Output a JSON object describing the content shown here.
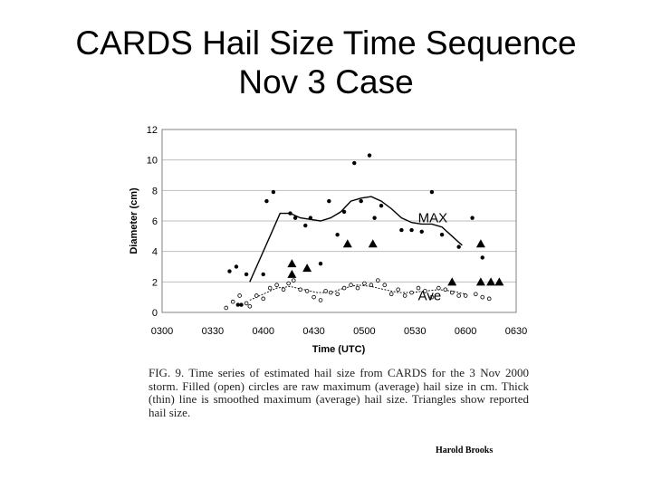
{
  "slide": {
    "title_line1": "CARDS Hail Size Time Sequence",
    "title_line2": "Nov 3 Case"
  },
  "chart_data": {
    "type": "scatter",
    "xlabel": "Time (UTC)",
    "ylabel": "Diameter (cm)",
    "x_ticks": [
      "0300",
      "0330",
      "0400",
      "0430",
      "0500",
      "0530",
      "0600",
      "0630"
    ],
    "y_ticks": [
      "0",
      "2",
      "4",
      "6",
      "8",
      "10",
      "12"
    ],
    "xlim": [
      0,
      210
    ],
    "ylim": [
      0,
      12
    ],
    "grid": "horizontal",
    "annotations": [
      {
        "text": "MAX",
        "x": 155,
        "y": 6.2
      },
      {
        "text": "Ave",
        "x": 155,
        "y": 1.1
      }
    ],
    "series": [
      {
        "name": "raw maximum hail size",
        "marker": "filled-circle",
        "points": [
          [
            40,
            2.7
          ],
          [
            44,
            3.0
          ],
          [
            45,
            0.5
          ],
          [
            47,
            0.5
          ],
          [
            50,
            2.5
          ],
          [
            60,
            2.5
          ],
          [
            62,
            7.3
          ],
          [
            66,
            7.9
          ],
          [
            76,
            6.5
          ],
          [
            79,
            6.2
          ],
          [
            85,
            5.7
          ],
          [
            88,
            6.2
          ],
          [
            94,
            3.2
          ],
          [
            99,
            7.3
          ],
          [
            104,
            5.1
          ],
          [
            108,
            6.6
          ],
          [
            114,
            9.8
          ],
          [
            118,
            7.3
          ],
          [
            123,
            10.3
          ],
          [
            126,
            6.2
          ],
          [
            130,
            7.0
          ],
          [
            142,
            5.4
          ],
          [
            148,
            5.4
          ],
          [
            154,
            5.3
          ],
          [
            160,
            7.9
          ],
          [
            166,
            5.1
          ],
          [
            176,
            4.3
          ],
          [
            184,
            6.2
          ],
          [
            190,
            3.6
          ]
        ]
      },
      {
        "name": "raw average hail size",
        "marker": "open-circle",
        "points": [
          [
            38,
            0.3
          ],
          [
            42,
            0.7
          ],
          [
            46,
            1.1
          ],
          [
            50,
            0.6
          ],
          [
            52,
            0.4
          ],
          [
            56,
            1.1
          ],
          [
            60,
            0.9
          ],
          [
            64,
            1.6
          ],
          [
            68,
            1.8
          ],
          [
            72,
            1.5
          ],
          [
            75,
            1.9
          ],
          [
            78,
            2.1
          ],
          [
            82,
            1.5
          ],
          [
            86,
            1.4
          ],
          [
            90,
            1.0
          ],
          [
            94,
            0.8
          ],
          [
            97,
            1.4
          ],
          [
            100,
            1.3
          ],
          [
            104,
            1.2
          ],
          [
            108,
            1.6
          ],
          [
            112,
            1.8
          ],
          [
            116,
            1.6
          ],
          [
            120,
            1.9
          ],
          [
            124,
            1.8
          ],
          [
            128,
            2.1
          ],
          [
            132,
            1.8
          ],
          [
            136,
            1.2
          ],
          [
            140,
            1.5
          ],
          [
            144,
            1.1
          ],
          [
            148,
            1.3
          ],
          [
            152,
            1.6
          ],
          [
            156,
            1.4
          ],
          [
            160,
            1.0
          ],
          [
            164,
            1.6
          ],
          [
            168,
            1.5
          ],
          [
            172,
            1.3
          ],
          [
            176,
            1.1
          ],
          [
            180,
            1.1
          ],
          [
            186,
            1.2
          ],
          [
            190,
            1.0
          ],
          [
            194,
            0.9
          ]
        ]
      },
      {
        "name": "reported hail size",
        "marker": "triangle",
        "points": [
          [
            77,
            3.2
          ],
          [
            77,
            2.5
          ],
          [
            86,
            2.9
          ],
          [
            110,
            4.5
          ],
          [
            125,
            4.5
          ],
          [
            172,
            2.0
          ],
          [
            189,
            4.5
          ],
          [
            189,
            2.0
          ],
          [
            195,
            2.0
          ],
          [
            200,
            2.0
          ]
        ]
      },
      {
        "name": "smoothed maximum",
        "style": "thick-line",
        "points": [
          [
            52,
            2.0
          ],
          [
            58,
            3.5
          ],
          [
            64,
            5.0
          ],
          [
            70,
            6.5
          ],
          [
            76,
            6.5
          ],
          [
            82,
            6.2
          ],
          [
            88,
            6.1
          ],
          [
            94,
            6.0
          ],
          [
            100,
            6.2
          ],
          [
            106,
            6.6
          ],
          [
            112,
            7.3
          ],
          [
            118,
            7.5
          ],
          [
            124,
            7.6
          ],
          [
            130,
            7.3
          ],
          [
            136,
            6.8
          ],
          [
            142,
            6.2
          ],
          [
            148,
            5.9
          ],
          [
            154,
            5.8
          ],
          [
            160,
            5.8
          ],
          [
            166,
            5.6
          ],
          [
            172,
            5.0
          ],
          [
            178,
            4.4
          ]
        ]
      },
      {
        "name": "smoothed average",
        "style": "thin-line",
        "points": [
          [
            52,
            0.8
          ],
          [
            60,
            1.2
          ],
          [
            68,
            1.6
          ],
          [
            76,
            1.7
          ],
          [
            84,
            1.5
          ],
          [
            92,
            1.3
          ],
          [
            100,
            1.3
          ],
          [
            108,
            1.6
          ],
          [
            116,
            1.8
          ],
          [
            124,
            1.7
          ],
          [
            132,
            1.5
          ],
          [
            140,
            1.3
          ],
          [
            148,
            1.3
          ],
          [
            156,
            1.4
          ],
          [
            164,
            1.5
          ],
          [
            172,
            1.4
          ],
          [
            180,
            1.2
          ]
        ]
      }
    ],
    "caption": "FIG. 9. Time series of estimated hail size from CARDS for the 3 Nov 2000 storm. Filled (open) circles are raw maximum (average) hail size in cm. Thick (thin) line is smoothed maximum (average) hail size. Triangles show reported hail size.",
    "credit": "Harold Brooks"
  }
}
